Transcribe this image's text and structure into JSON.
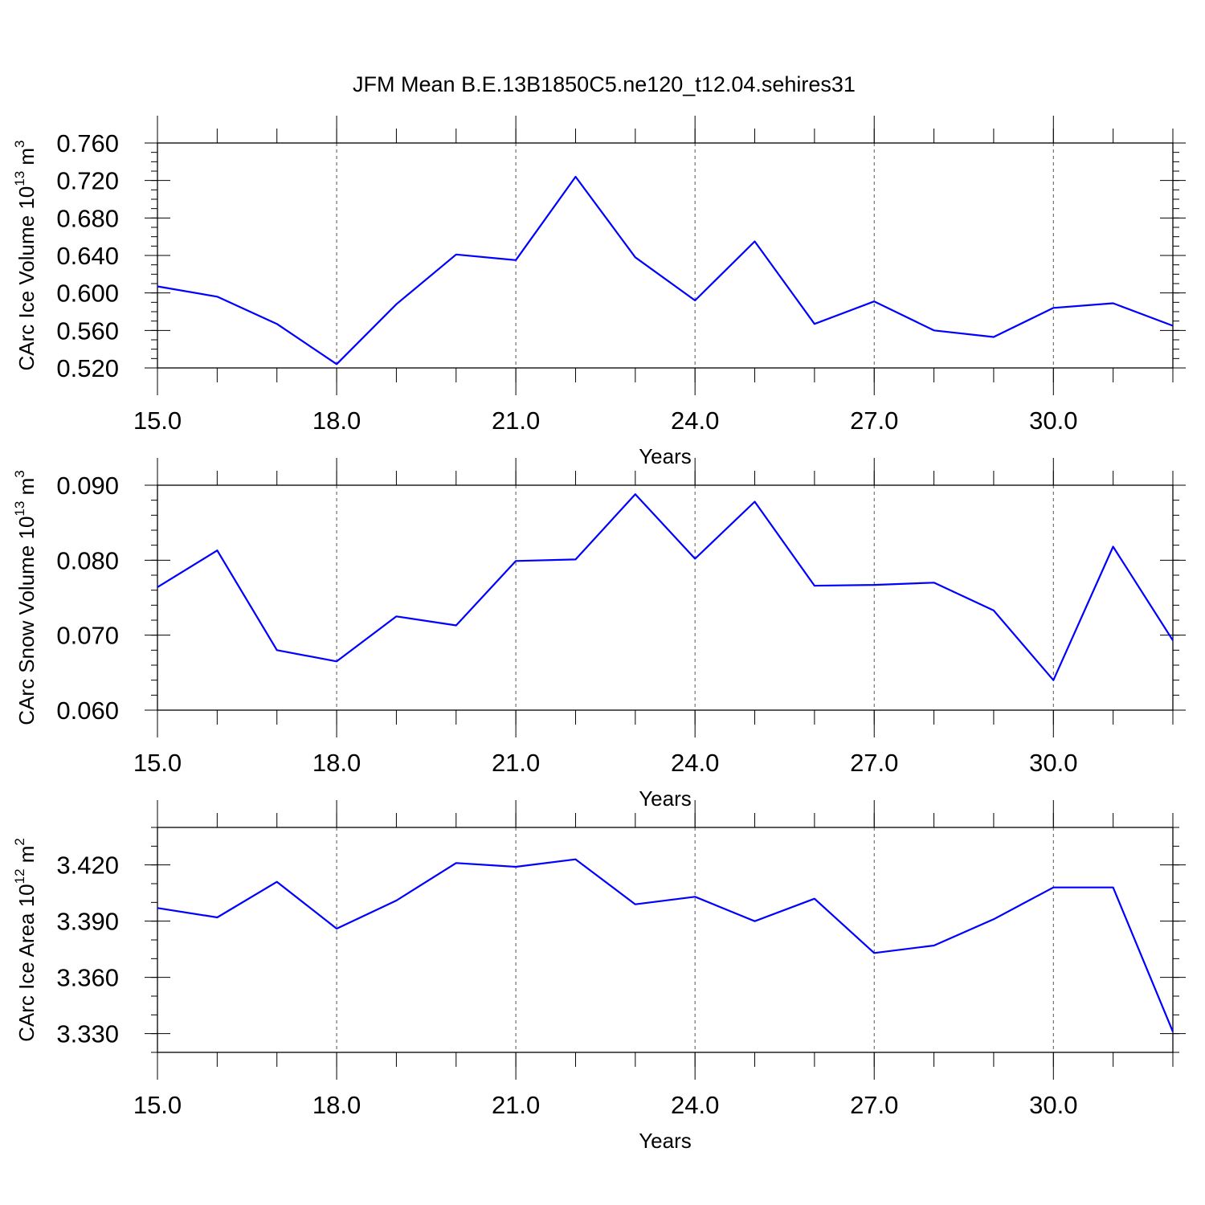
{
  "title": "JFM Mean B.E.13B1850C5.ne120_t12.04.sehires31",
  "colors": {
    "line": "#0000ff",
    "axis": "#000000"
  },
  "chart_data": [
    {
      "type": "line",
      "x": [
        15,
        16,
        17,
        18,
        19,
        20,
        21,
        22,
        23,
        24,
        25,
        26,
        27,
        28,
        29,
        30,
        31,
        32
      ],
      "series": [
        {
          "values": [
            0.607,
            0.596,
            0.567,
            0.524,
            0.588,
            0.641,
            0.635,
            0.724,
            0.638,
            0.592,
            0.655,
            0.567,
            0.591,
            0.56,
            0.553,
            0.584,
            0.589,
            0.565
          ]
        }
      ],
      "xlabel": "Years",
      "ylabel": {
        "text": "CArc Ice Volume 10",
        "sup": "13",
        "unit": " m",
        "unit_sup": "3"
      },
      "xlim": [
        15,
        32
      ],
      "ylim": [
        0.52,
        0.76
      ],
      "xticks": [
        15,
        18,
        21,
        24,
        27,
        30
      ],
      "xtick_labels": [
        "15.0",
        "18.0",
        "21.0",
        "24.0",
        "27.0",
        "30.0"
      ],
      "yticks": [
        0.52,
        0.56,
        0.6,
        0.64,
        0.68,
        0.72,
        0.76
      ],
      "ytick_labels": [
        "0.520",
        "0.560",
        "0.600",
        "0.640",
        "0.680",
        "0.720",
        "0.760"
      ],
      "yminor_step": 0.01,
      "grid": "x-dashed"
    },
    {
      "type": "line",
      "x": [
        15,
        16,
        17,
        18,
        19,
        20,
        21,
        22,
        23,
        24,
        25,
        26,
        27,
        28,
        29,
        30,
        31,
        32
      ],
      "series": [
        {
          "values": [
            0.0764,
            0.0813,
            0.068,
            0.0665,
            0.0725,
            0.0713,
            0.0799,
            0.0801,
            0.0888,
            0.0802,
            0.0878,
            0.0766,
            0.0767,
            0.077,
            0.0733,
            0.064,
            0.0818,
            0.0693
          ]
        }
      ],
      "xlabel": "Years",
      "ylabel": {
        "text": "CArc Snow Volume 10",
        "sup": "13",
        "unit": " m",
        "unit_sup": "3"
      },
      "xlim": [
        15,
        32
      ],
      "ylim": [
        0.06,
        0.09
      ],
      "xticks": [
        15,
        18,
        21,
        24,
        27,
        30
      ],
      "xtick_labels": [
        "15.0",
        "18.0",
        "21.0",
        "24.0",
        "27.0",
        "30.0"
      ],
      "yticks": [
        0.06,
        0.07,
        0.08,
        0.09
      ],
      "ytick_labels": [
        "0.060",
        "0.070",
        "0.080",
        "0.090"
      ],
      "yminor_step": 0.002,
      "grid": "x-dashed"
    },
    {
      "type": "line",
      "x": [
        15,
        16,
        17,
        18,
        19,
        20,
        21,
        22,
        23,
        24,
        25,
        26,
        27,
        28,
        29,
        30,
        31,
        32
      ],
      "series": [
        {
          "values": [
            3.397,
            3.392,
            3.411,
            3.386,
            3.401,
            3.421,
            3.419,
            3.423,
            3.399,
            3.403,
            3.39,
            3.402,
            3.373,
            3.377,
            3.391,
            3.408,
            3.408,
            3.331
          ]
        }
      ],
      "xlabel": "Years",
      "ylabel": {
        "text": "CArc Ice Area 10",
        "sup": "12",
        "unit": " m",
        "unit_sup": "2"
      },
      "xlim": [
        15,
        32
      ],
      "ylim": [
        3.32,
        3.44
      ],
      "xticks": [
        15,
        18,
        21,
        24,
        27,
        30
      ],
      "xtick_labels": [
        "15.0",
        "18.0",
        "21.0",
        "24.0",
        "27.0",
        "30.0"
      ],
      "yticks": [
        3.33,
        3.36,
        3.39,
        3.42
      ],
      "ytick_labels": [
        "3.330",
        "3.360",
        "3.390",
        "3.420"
      ],
      "yminor_step": 0.01,
      "grid": "x-dashed"
    }
  ]
}
